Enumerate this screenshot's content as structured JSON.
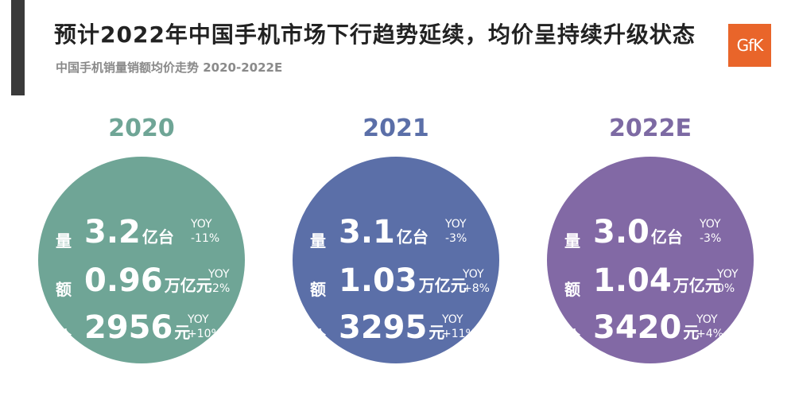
{
  "title": "预计2022年中国手机市场下行趋势延续，均价呈持续升级状态",
  "subtitle": "中国手机销量销额均价走势 2020-2022E",
  "logo_text": "GfK",
  "colors": {
    "c2020": "#6fa596",
    "c2021": "#5b6fa8",
    "c2022": "#8269a5",
    "logo": "#e9652a"
  },
  "metric_labels": {
    "volume": "量",
    "value": "额",
    "price": "价"
  },
  "yoy_label": "YOY",
  "years": [
    {
      "year": "2020",
      "volume": {
        "num": "3.2",
        "unit": "亿台",
        "yoy": "-11%"
      },
      "value": {
        "num": "0.96",
        "unit": "万亿元",
        "yoy": "-2%"
      },
      "price": {
        "num": "2956",
        "unit": "元",
        "yoy": "+10%"
      }
    },
    {
      "year": "2021",
      "volume": {
        "num": "3.1",
        "unit": "亿台",
        "yoy": "-3%"
      },
      "value": {
        "num": "1.03",
        "unit": "万亿元",
        "yoy": "+8%"
      },
      "price": {
        "num": "3295",
        "unit": "元",
        "yoy": "+11%"
      }
    },
    {
      "year": "2022E",
      "volume": {
        "num": "3.0",
        "unit": "亿台",
        "yoy": "-3%"
      },
      "value": {
        "num": "1.04",
        "unit": "万亿元",
        "yoy": "0%"
      },
      "price": {
        "num": "3420",
        "unit": "元",
        "yoy": "+4%"
      }
    }
  ]
}
